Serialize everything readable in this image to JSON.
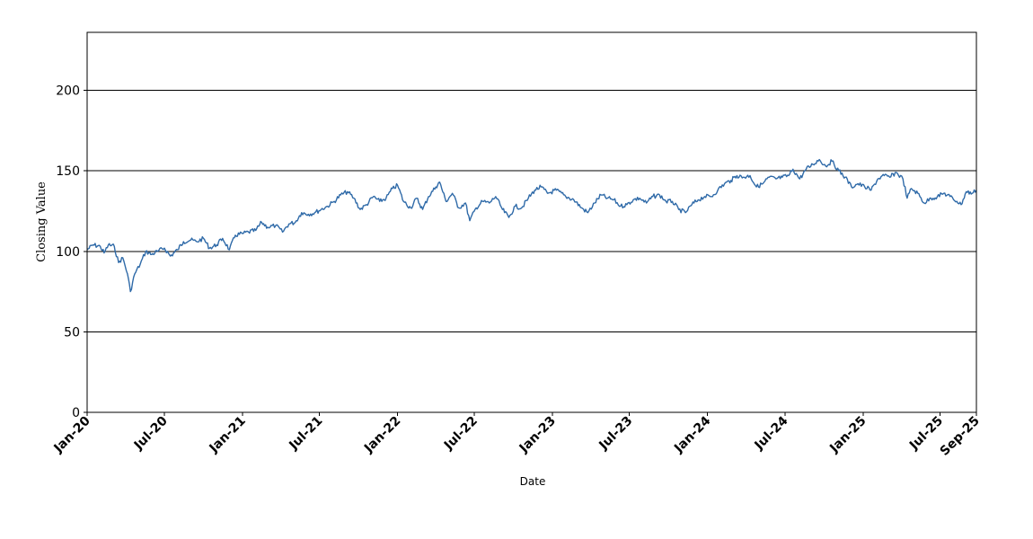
{
  "chart_data": {
    "type": "line",
    "title": "",
    "xlabel": "Date",
    "ylabel": "Closing Value",
    "ylim": [
      0,
      236
    ],
    "xlim": [
      "2020-01-01",
      "2025-09-25"
    ],
    "grid": {
      "y": true,
      "x": false
    },
    "y_ticks": [
      0,
      50,
      100,
      150,
      200
    ],
    "x_ticks": [
      {
        "date": "2020-01-01",
        "label": "Jan-20"
      },
      {
        "date": "2020-07-01",
        "label": "Jul-20"
      },
      {
        "date": "2021-01-01",
        "label": "Jan-21"
      },
      {
        "date": "2021-07-01",
        "label": "Jul-21"
      },
      {
        "date": "2022-01-01",
        "label": "Jan-22"
      },
      {
        "date": "2022-07-01",
        "label": "Jul-22"
      },
      {
        "date": "2023-01-01",
        "label": "Jan-23"
      },
      {
        "date": "2023-07-01",
        "label": "Jul-23"
      },
      {
        "date": "2024-01-01",
        "label": "Jan-24"
      },
      {
        "date": "2024-07-01",
        "label": "Jul-24"
      },
      {
        "date": "2025-01-01",
        "label": "Jan-25"
      },
      {
        "date": "2025-07-01",
        "label": "Jul-25"
      },
      {
        "date": "2025-09-25",
        "label": "Sep-25"
      }
    ],
    "series": [
      {
        "color": "#2f6aa8",
        "points": [
          [
            "2020-01-01",
            101
          ],
          [
            "2020-01-15",
            104
          ],
          [
            "2020-02-01",
            103
          ],
          [
            "2020-02-10",
            99
          ],
          [
            "2020-02-20",
            104
          ],
          [
            "2020-03-05",
            103
          ],
          [
            "2020-03-15",
            93
          ],
          [
            "2020-03-25",
            96
          ],
          [
            "2020-04-05",
            86
          ],
          [
            "2020-04-12",
            75
          ],
          [
            "2020-04-22",
            86
          ],
          [
            "2020-05-05",
            92
          ],
          [
            "2020-05-18",
            100
          ],
          [
            "2020-06-01",
            98
          ],
          [
            "2020-06-15",
            100
          ],
          [
            "2020-07-01",
            102
          ],
          [
            "2020-07-15",
            97
          ],
          [
            "2020-08-01",
            101
          ],
          [
            "2020-08-15",
            106
          ],
          [
            "2020-09-01",
            107
          ],
          [
            "2020-09-15",
            106
          ],
          [
            "2020-10-01",
            108
          ],
          [
            "2020-10-15",
            102
          ],
          [
            "2020-11-01",
            104
          ],
          [
            "2020-11-15",
            108
          ],
          [
            "2020-12-01",
            101
          ],
          [
            "2020-12-15",
            110
          ],
          [
            "2021-01-01",
            111
          ],
          [
            "2021-01-15",
            112
          ],
          [
            "2021-02-01",
            113
          ],
          [
            "2021-02-15",
            118
          ],
          [
            "2021-03-01",
            115
          ],
          [
            "2021-03-20",
            116
          ],
          [
            "2021-04-05",
            112
          ],
          [
            "2021-04-20",
            117
          ],
          [
            "2021-05-05",
            118
          ],
          [
            "2021-05-20",
            124
          ],
          [
            "2021-06-05",
            123
          ],
          [
            "2021-06-20",
            124
          ],
          [
            "2021-07-05",
            126
          ],
          [
            "2021-07-20",
            128
          ],
          [
            "2021-08-05",
            131
          ],
          [
            "2021-08-20",
            135
          ],
          [
            "2021-09-05",
            137
          ],
          [
            "2021-09-20",
            133
          ],
          [
            "2021-10-05",
            126
          ],
          [
            "2021-10-20",
            129
          ],
          [
            "2021-11-05",
            134
          ],
          [
            "2021-11-20",
            131
          ],
          [
            "2021-12-05",
            133
          ],
          [
            "2021-12-20",
            139
          ],
          [
            "2022-01-01",
            141
          ],
          [
            "2022-01-15",
            131
          ],
          [
            "2022-02-01",
            127
          ],
          [
            "2022-02-15",
            133
          ],
          [
            "2022-03-01",
            126
          ],
          [
            "2022-03-15",
            134
          ],
          [
            "2022-04-01",
            140
          ],
          [
            "2022-04-10",
            143
          ],
          [
            "2022-04-25",
            131
          ],
          [
            "2022-05-10",
            136
          ],
          [
            "2022-05-25",
            127
          ],
          [
            "2022-06-10",
            130
          ],
          [
            "2022-06-20",
            119
          ],
          [
            "2022-07-05",
            127
          ],
          [
            "2022-07-20",
            131
          ],
          [
            "2022-08-05",
            130
          ],
          [
            "2022-08-20",
            134
          ],
          [
            "2022-09-05",
            126
          ],
          [
            "2022-09-20",
            121
          ],
          [
            "2022-10-05",
            128
          ],
          [
            "2022-10-20",
            127
          ],
          [
            "2022-11-05",
            133
          ],
          [
            "2022-11-20",
            138
          ],
          [
            "2022-12-05",
            140
          ],
          [
            "2022-12-20",
            136
          ],
          [
            "2023-01-10",
            138
          ],
          [
            "2023-02-01",
            134
          ],
          [
            "2023-02-20",
            132
          ],
          [
            "2023-03-10",
            127
          ],
          [
            "2023-03-25",
            124
          ],
          [
            "2023-04-10",
            130
          ],
          [
            "2023-04-25",
            135
          ],
          [
            "2023-05-10",
            133
          ],
          [
            "2023-05-25",
            132
          ],
          [
            "2023-06-10",
            128
          ],
          [
            "2023-06-25",
            129
          ],
          [
            "2023-07-10",
            132
          ],
          [
            "2023-07-25",
            133
          ],
          [
            "2023-08-10",
            130
          ],
          [
            "2023-08-25",
            134
          ],
          [
            "2023-09-10",
            135
          ],
          [
            "2023-09-25",
            131
          ],
          [
            "2023-10-10",
            131
          ],
          [
            "2023-10-25",
            126
          ],
          [
            "2023-11-10",
            124
          ],
          [
            "2023-11-25",
            129
          ],
          [
            "2023-12-10",
            132
          ],
          [
            "2023-12-25",
            134
          ],
          [
            "2024-01-10",
            134
          ],
          [
            "2024-01-25",
            138
          ],
          [
            "2024-02-10",
            142
          ],
          [
            "2024-02-25",
            144
          ],
          [
            "2024-03-10",
            147
          ],
          [
            "2024-03-25",
            146
          ],
          [
            "2024-04-10",
            147
          ],
          [
            "2024-04-25",
            140
          ],
          [
            "2024-05-10",
            142
          ],
          [
            "2024-05-25",
            146
          ],
          [
            "2024-06-10",
            145
          ],
          [
            "2024-06-25",
            146
          ],
          [
            "2024-07-10",
            147
          ],
          [
            "2024-07-20",
            151
          ],
          [
            "2024-08-05",
            145
          ],
          [
            "2024-08-20",
            151
          ],
          [
            "2024-09-05",
            154
          ],
          [
            "2024-09-20",
            157
          ],
          [
            "2024-10-05",
            153
          ],
          [
            "2024-10-20",
            156
          ],
          [
            "2024-11-05",
            150
          ],
          [
            "2024-11-20",
            146
          ],
          [
            "2024-12-05",
            140
          ],
          [
            "2024-12-20",
            142
          ],
          [
            "2025-01-05",
            140
          ],
          [
            "2025-01-20",
            138
          ],
          [
            "2025-02-05",
            145
          ],
          [
            "2025-02-20",
            147
          ],
          [
            "2025-03-05",
            146
          ],
          [
            "2025-03-20",
            149
          ],
          [
            "2025-04-05",
            145
          ],
          [
            "2025-04-15",
            133
          ],
          [
            "2025-04-25",
            139
          ],
          [
            "2025-05-10",
            136
          ],
          [
            "2025-05-25",
            130
          ],
          [
            "2025-06-10",
            133
          ],
          [
            "2025-06-25",
            134
          ],
          [
            "2025-07-10",
            136
          ],
          [
            "2025-07-25",
            134
          ],
          [
            "2025-08-10",
            131
          ],
          [
            "2025-08-20",
            129
          ],
          [
            "2025-09-01",
            137
          ],
          [
            "2025-09-15",
            136
          ],
          [
            "2025-09-25",
            138
          ]
        ]
      }
    ]
  }
}
